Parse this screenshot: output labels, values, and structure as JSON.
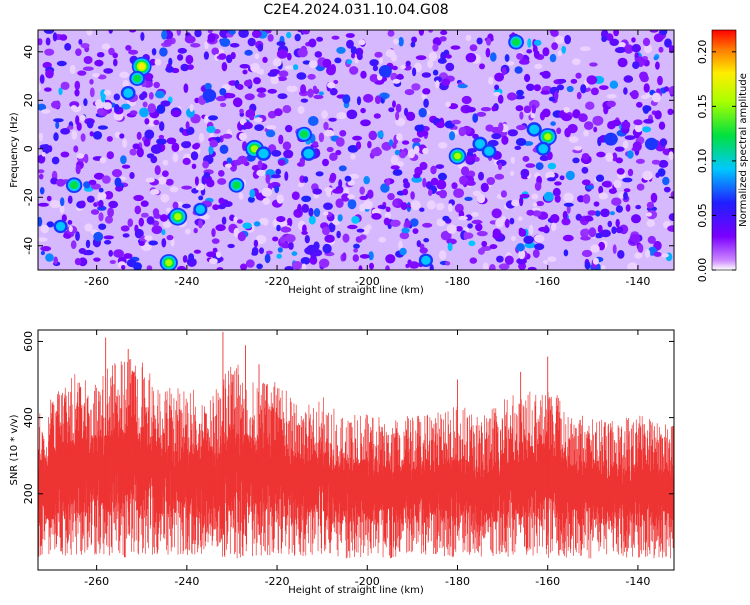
{
  "title": "C2E4.2024.031.10.04.G08",
  "chart_data": [
    {
      "type": "heatmap",
      "title": "C2E4.2024.031.10.04.G08",
      "xlabel": "Height of straight line (km)",
      "ylabel": "Frequency (Hz)",
      "xlim": [
        -273,
        -132
      ],
      "ylim": [
        -50,
        49
      ],
      "x_ticks": [
        "-260",
        "-240",
        "-220",
        "-200",
        "-180",
        "-160",
        "-140"
      ],
      "y_ticks": [
        "40",
        "20",
        "0",
        "-20",
        "-40"
      ],
      "grid": false,
      "colorbar": {
        "label": "Normalized spectral amplitude",
        "range": [
          0,
          0.22
        ],
        "ticks": [
          "0.00",
          "0.05",
          "0.10",
          "0.15",
          "0.20"
        ],
        "colormap": "rainbow (white-purple-blue-cyan-green-yellow-red)"
      },
      "hotspots": [
        {
          "x": -250,
          "y": 34,
          "value": 0.2
        },
        {
          "x": -251,
          "y": 29,
          "value": 0.13
        },
        {
          "x": -253,
          "y": 23,
          "value": 0.11
        },
        {
          "x": -265,
          "y": -15,
          "value": 0.14
        },
        {
          "x": -268,
          "y": -32,
          "value": 0.1
        },
        {
          "x": -242,
          "y": -28,
          "value": 0.18
        },
        {
          "x": -244,
          "y": -47,
          "value": 0.17
        },
        {
          "x": -237,
          "y": -25,
          "value": 0.1
        },
        {
          "x": -225,
          "y": 0,
          "value": 0.18
        },
        {
          "x": -223,
          "y": -2,
          "value": 0.12
        },
        {
          "x": -214,
          "y": 6,
          "value": 0.13
        },
        {
          "x": -213,
          "y": -2,
          "value": 0.12
        },
        {
          "x": -229,
          "y": -15,
          "value": 0.13
        },
        {
          "x": -180,
          "y": -3,
          "value": 0.16
        },
        {
          "x": -175,
          "y": 2,
          "value": 0.12
        },
        {
          "x": -173,
          "y": -1,
          "value": 0.11
        },
        {
          "x": -167,
          "y": 44,
          "value": 0.13
        },
        {
          "x": -160,
          "y": 5,
          "value": 0.17
        },
        {
          "x": -163,
          "y": 8,
          "value": 0.12
        },
        {
          "x": -161,
          "y": 0,
          "value": 0.11
        },
        {
          "x": -187,
          "y": -46,
          "value": 0.1
        },
        {
          "x": -196,
          "y": 32,
          "value": 0.08
        },
        {
          "x": -235,
          "y": 22,
          "value": 0.09
        },
        {
          "x": -146,
          "y": 4,
          "value": 0.09
        },
        {
          "x": -137,
          "y": 2,
          "value": 0.08
        }
      ]
    },
    {
      "type": "line",
      "xlabel": "Height of straight line (km)",
      "ylabel": "SNR (10 * v/v)",
      "xlim": [
        -273,
        -132
      ],
      "ylim": [
        0,
        630
      ],
      "x_ticks": [
        "-260",
        "-240",
        "-220",
        "-200",
        "-180",
        "-160",
        "-140"
      ],
      "y_ticks": [
        "600",
        "400",
        "200"
      ],
      "grid": false,
      "series_color": "#ee3333",
      "envelope": {
        "x": [
          -273,
          -265,
          -260,
          -255,
          -250,
          -245,
          -240,
          -235,
          -230,
          -225,
          -220,
          -215,
          -210,
          -205,
          -200,
          -195,
          -190,
          -185,
          -180,
          -175,
          -170,
          -165,
          -160,
          -158,
          -155,
          -150,
          -145,
          -140,
          -135,
          -132
        ],
        "upper": [
          410,
          520,
          500,
          560,
          550,
          480,
          480,
          460,
          560,
          500,
          500,
          430,
          460,
          400,
          420,
          390,
          410,
          410,
          440,
          400,
          450,
          470,
          480,
          470,
          400,
          420,
          390,
          410,
          400,
          390
        ],
        "lower": [
          30,
          40,
          40,
          30,
          40,
          40,
          35,
          40,
          30,
          30,
          40,
          35,
          40,
          30,
          35,
          30,
          40,
          40,
          30,
          35,
          30,
          40,
          30,
          30,
          30,
          30,
          35,
          30,
          30,
          30
        ]
      },
      "peaks": [
        {
          "x": -232,
          "y": 625
        },
        {
          "x": -258,
          "y": 610
        },
        {
          "x": -227,
          "y": 590
        },
        {
          "x": -253,
          "y": 580
        },
        {
          "x": -160,
          "y": 560
        },
        {
          "x": -224,
          "y": 540
        },
        {
          "x": -166,
          "y": 520
        },
        {
          "x": -180,
          "y": 500
        }
      ]
    }
  ]
}
